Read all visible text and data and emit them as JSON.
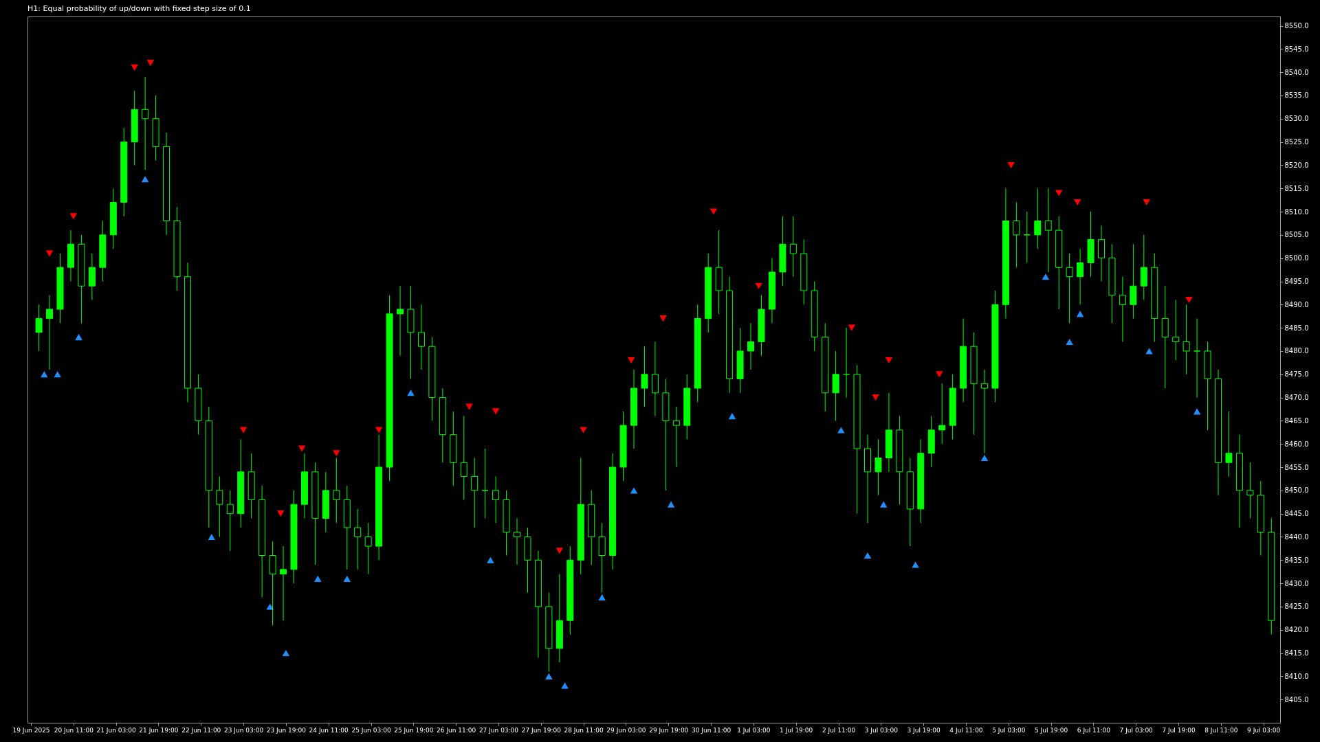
{
  "chart_data": {
    "type": "candlestick",
    "title": "H1:  Equal probability of up/down with fixed step size of 0.1",
    "color": "#00ff00",
    "x": [
      "2025-06-19T22:00",
      "2025-06-20T02:00",
      "2025-06-20T06:00",
      "2025-06-20T10:00",
      "2025-06-20T14:00",
      "2025-06-20T18:00",
      "2025-06-20T22:00",
      "2025-06-21T02:00",
      "2025-06-21T06:00",
      "2025-06-21T10:00",
      "2025-06-21T14:00",
      "2025-06-21T18:00",
      "2025-06-21T22:00",
      "2025-06-22T02:00",
      "2025-06-22T06:00",
      "2025-06-22T10:00",
      "2025-06-22T14:00",
      "2025-06-22T18:00",
      "2025-06-22T22:00",
      "2025-06-23T02:00",
      "2025-06-23T06:00",
      "2025-06-23T10:00",
      "2025-06-23T14:00",
      "2025-06-23T18:00",
      "2025-06-23T22:00",
      "2025-06-24T02:00",
      "2025-06-24T06:00",
      "2025-06-24T10:00",
      "2025-06-24T14:00",
      "2025-06-24T18:00",
      "2025-06-24T22:00",
      "2025-06-25T02:00",
      "2025-06-25T06:00",
      "2025-06-25T10:00",
      "2025-06-25T14:00",
      "2025-06-25T18:00",
      "2025-06-25T22:00",
      "2025-06-26T02:00",
      "2025-06-26T06:00",
      "2025-06-26T10:00",
      "2025-06-26T14:00",
      "2025-06-26T18:00",
      "2025-06-26T22:00",
      "2025-06-27T02:00",
      "2025-06-27T06:00",
      "2025-06-27T10:00",
      "2025-06-27T14:00",
      "2025-06-27T18:00",
      "2025-06-27T22:00",
      "2025-06-28T02:00",
      "2025-06-28T06:00",
      "2025-06-28T10:00",
      "2025-06-28T14:00",
      "2025-06-28T18:00",
      "2025-06-28T22:00",
      "2025-06-29T02:00",
      "2025-06-29T06:00",
      "2025-06-29T10:00",
      "2025-06-29T14:00",
      "2025-06-29T18:00",
      "2025-06-29T22:00",
      "2025-06-30T02:00",
      "2025-06-30T06:00",
      "2025-06-30T10:00",
      "2025-06-30T14:00",
      "2025-06-30T18:00",
      "2025-06-30T22:00",
      "2025-07-01T02:00",
      "2025-07-01T06:00",
      "2025-07-01T10:00",
      "2025-07-01T14:00",
      "2025-07-01T18:00",
      "2025-07-01T22:00",
      "2025-07-02T02:00",
      "2025-07-02T06:00",
      "2025-07-02T10:00",
      "2025-07-02T14:00",
      "2025-07-02T18:00",
      "2025-07-02T22:00",
      "2025-07-03T02:00",
      "2025-07-03T06:00",
      "2025-07-03T10:00",
      "2025-07-03T14:00",
      "2025-07-03T18:00",
      "2025-07-03T22:00",
      "2025-07-04T02:00",
      "2025-07-04T06:00",
      "2025-07-04T10:00",
      "2025-07-04T14:00",
      "2025-07-04T18:00",
      "2025-07-04T22:00",
      "2025-07-05T02:00",
      "2025-07-05T06:00",
      "2025-07-05T10:00",
      "2025-07-05T14:00",
      "2025-07-05T18:00",
      "2025-07-05T22:00",
      "2025-07-06T02:00",
      "2025-07-06T06:00",
      "2025-07-06T10:00",
      "2025-07-06T14:00",
      "2025-07-06T18:00",
      "2025-07-06T22:00",
      "2025-07-07T02:00",
      "2025-07-07T06:00",
      "2025-07-07T10:00",
      "2025-07-07T14:00",
      "2025-07-07T18:00",
      "2025-07-07T22:00",
      "2025-07-08T02:00",
      "2025-07-08T06:00",
      "2025-07-08T10:00",
      "2025-07-08T14:00",
      "2025-07-08T18:00",
      "2025-07-08T22:00",
      "2025-07-09T02:00",
      "2025-07-09T06:00"
    ],
    "ohlc": [
      [
        8484,
        8490,
        8480,
        8487
      ],
      [
        8487,
        8492,
        8476,
        8489
      ],
      [
        8489,
        8501,
        8486,
        8498
      ],
      [
        8498,
        8506,
        8495,
        8503
      ],
      [
        8503,
        8505,
        8486,
        8494
      ],
      [
        8494,
        8501,
        8491,
        8498
      ],
      [
        8498,
        8508,
        8495,
        8505
      ],
      [
        8505,
        8515,
        8502,
        8512
      ],
      [
        8512,
        8528,
        8509,
        8525
      ],
      [
        8525,
        8536,
        8520,
        8532
      ],
      [
        8532,
        8539,
        8519,
        8530
      ],
      [
        8530,
        8535,
        8521,
        8524
      ],
      [
        8524,
        8527,
        8505,
        8508
      ],
      [
        8508,
        8511,
        8493,
        8496
      ],
      [
        8496,
        8499,
        8469,
        8472
      ],
      [
        8472,
        8475,
        8462,
        8465
      ],
      [
        8465,
        8468,
        8442,
        8450
      ],
      [
        8450,
        8453,
        8440,
        8447
      ],
      [
        8447,
        8450,
        8437,
        8445
      ],
      [
        8445,
        8461,
        8442,
        8454
      ],
      [
        8454,
        8458,
        8444,
        8448
      ],
      [
        8448,
        8451,
        8427,
        8436
      ],
      [
        8436,
        8439,
        8421,
        8432
      ],
      [
        8432,
        8438,
        8422,
        8433
      ],
      [
        8433,
        8450,
        8430,
        8447
      ],
      [
        8447,
        8458,
        8444,
        8454
      ],
      [
        8454,
        8456,
        8434,
        8444
      ],
      [
        8444,
        8454,
        8441,
        8450
      ],
      [
        8450,
        8457,
        8443,
        8448
      ],
      [
        8448,
        8451,
        8433,
        8442
      ],
      [
        8442,
        8446,
        8433,
        8440
      ],
      [
        8440,
        8443,
        8432,
        8438
      ],
      [
        8438,
        8462,
        8435,
        8455
      ],
      [
        8455,
        8492,
        8452,
        8488
      ],
      [
        8488,
        8494,
        8479,
        8489
      ],
      [
        8489,
        8494,
        8474,
        8484
      ],
      [
        8484,
        8490,
        8476,
        8481
      ],
      [
        8481,
        8483,
        8465,
        8470
      ],
      [
        8470,
        8472,
        8456,
        8462
      ],
      [
        8462,
        8467,
        8451,
        8456
      ],
      [
        8456,
        8466,
        8448,
        8453
      ],
      [
        8453,
        8457,
        8442,
        8450
      ],
      [
        8450,
        8459,
        8444,
        8450
      ],
      [
        8450,
        8453,
        8443,
        8448
      ],
      [
        8448,
        8450,
        8436,
        8441
      ],
      [
        8441,
        8444,
        8434,
        8440
      ],
      [
        8440,
        8442,
        8428,
        8435
      ],
      [
        8435,
        8437,
        8414,
        8425
      ],
      [
        8425,
        8428,
        8411,
        8416
      ],
      [
        8416,
        8432,
        8413,
        8422
      ],
      [
        8422,
        8438,
        8419,
        8435
      ],
      [
        8435,
        8457,
        8432,
        8447
      ],
      [
        8447,
        8450,
        8434,
        8440
      ],
      [
        8440,
        8443,
        8428,
        8436
      ],
      [
        8436,
        8458,
        8433,
        8455
      ],
      [
        8455,
        8467,
        8452,
        8464
      ],
      [
        8464,
        8476,
        8459,
        8472
      ],
      [
        8472,
        8481,
        8468,
        8475
      ],
      [
        8475,
        8482,
        8466,
        8471
      ],
      [
        8471,
        8474,
        8450,
        8465
      ],
      [
        8465,
        8468,
        8455,
        8464
      ],
      [
        8464,
        8475,
        8461,
        8472
      ],
      [
        8472,
        8490,
        8469,
        8487
      ],
      [
        8487,
        8501,
        8484,
        8498
      ],
      [
        8498,
        8506,
        8488,
        8493
      ],
      [
        8493,
        8496,
        8471,
        8474
      ],
      [
        8474,
        8485,
        8471,
        8480
      ],
      [
        8480,
        8486,
        8476,
        8482
      ],
      [
        8482,
        8492,
        8479,
        8489
      ],
      [
        8489,
        8500,
        8486,
        8497
      ],
      [
        8497,
        8509,
        8494,
        8503
      ],
      [
        8503,
        8509,
        8496,
        8501
      ],
      [
        8501,
        8504,
        8490,
        8493
      ],
      [
        8493,
        8495,
        8480,
        8483
      ],
      [
        8483,
        8486,
        8467,
        8471
      ],
      [
        8471,
        8480,
        8465,
        8475
      ],
      [
        8475,
        8485,
        8470,
        8475
      ],
      [
        8475,
        8477,
        8445,
        8459
      ],
      [
        8459,
        8462,
        8443,
        8454
      ],
      [
        8454,
        8461,
        8449,
        8457
      ],
      [
        8457,
        8471,
        8454,
        8463
      ],
      [
        8463,
        8466,
        8447,
        8454
      ],
      [
        8454,
        8457,
        8438,
        8446
      ],
      [
        8446,
        8461,
        8443,
        8458
      ],
      [
        8458,
        8466,
        8455,
        8463
      ],
      [
        8463,
        8473,
        8460,
        8464
      ],
      [
        8464,
        8475,
        8461,
        8472
      ],
      [
        8472,
        8487,
        8469,
        8481
      ],
      [
        8481,
        8484,
        8462,
        8473
      ],
      [
        8473,
        8476,
        8458,
        8472
      ],
      [
        8472,
        8493,
        8469,
        8490
      ],
      [
        8490,
        8515,
        8487,
        8508
      ],
      [
        8508,
        8512,
        8498,
        8505
      ],
      [
        8505,
        8510,
        8499,
        8505
      ],
      [
        8505,
        8515,
        8502,
        8508
      ],
      [
        8508,
        8515,
        8497,
        8506
      ],
      [
        8506,
        8509,
        8489,
        8498
      ],
      [
        8498,
        8501,
        8486,
        8496
      ],
      [
        8496,
        8502,
        8490,
        8499
      ],
      [
        8499,
        8510,
        8496,
        8504
      ],
      [
        8504,
        8507,
        8495,
        8500
      ],
      [
        8500,
        8503,
        8486,
        8492
      ],
      [
        8492,
        8496,
        8482,
        8490
      ],
      [
        8490,
        8503,
        8487,
        8494
      ],
      [
        8494,
        8505,
        8491,
        8498
      ],
      [
        8498,
        8501,
        8482,
        8487
      ],
      [
        8487,
        8494,
        8472,
        8483
      ],
      [
        8483,
        8491,
        8478,
        8482
      ],
      [
        8482,
        8490,
        8475,
        8480
      ],
      [
        8480,
        8487,
        8470,
        8480
      ],
      [
        8480,
        8482,
        8463,
        8474
      ],
      [
        8474,
        8476,
        8449,
        8456
      ],
      [
        8456,
        8467,
        8453,
        8458
      ],
      [
        8458,
        8462,
        8442,
        8450
      ],
      [
        8450,
        8456,
        8444,
        8449
      ],
      [
        8449,
        8452,
        8436,
        8441
      ],
      [
        8441,
        8444,
        8419,
        8422
      ]
    ],
    "series": [
      {
        "type": "scatter",
        "color": "#1e90ff",
        "marker": "triangle",
        "x": [
          "2025-06-20T00:00",
          "2025-06-20T05:00",
          "2025-06-20T13:00",
          "2025-06-21T14:00",
          "2025-06-22T15:00",
          "2025-06-23T13:00",
          "2025-06-23T19:00",
          "2025-06-24T07:00",
          "2025-06-24T18:00",
          "2025-06-25T18:00",
          "2025-06-27T00:00",
          "2025-06-27T22:00",
          "2025-06-28T04:00",
          "2025-06-28T18:00",
          "2025-06-29T06:00",
          "2025-06-29T20:00",
          "2025-06-30T19:00",
          "2025-07-02T12:00",
          "2025-07-02T22:00",
          "2025-07-03T04:00",
          "2025-07-03T16:00",
          "2025-07-04T18:00",
          "2025-07-05T17:00",
          "2025-07-06T02:00",
          "2025-07-06T06:00",
          "2025-07-07T08:00",
          "2025-07-08T02:00"
        ],
        "values": [
          8475,
          8475,
          8483,
          8517,
          8440,
          8425,
          8415,
          8431,
          8431,
          8471,
          8435,
          8410,
          8408,
          8427,
          8450,
          8447,
          8466,
          8463,
          8436,
          8447,
          8434,
          8457,
          8496,
          8482,
          8488,
          8480,
          8467
        ]
      },
      {
        "type": "scatter",
        "color": "#ff0000",
        "marker": "triangle",
        "x": [
          "2025-06-20T02:00",
          "2025-06-20T11:00",
          "2025-06-21T10:00",
          "2025-06-21T16:00",
          "2025-06-23T03:00",
          "2025-06-23T17:00",
          "2025-06-24T01:00",
          "2025-06-24T14:00",
          "2025-06-25T06:00",
          "2025-06-26T16:00",
          "2025-06-27T02:00",
          "2025-06-28T02:00",
          "2025-06-28T11:00",
          "2025-06-29T05:00",
          "2025-06-29T17:00",
          "2025-06-30T12:00",
          "2025-07-01T05:00",
          "2025-07-02T16:00",
          "2025-07-03T01:00",
          "2025-07-03T06:00",
          "2025-07-04T01:00",
          "2025-07-05T04:00",
          "2025-07-05T22:00",
          "2025-07-06T05:00",
          "2025-07-07T07:00",
          "2025-07-07T23:00"
        ],
        "values": [
          8501,
          8509,
          8541,
          8542,
          8463,
          8445,
          8459,
          8458,
          8463,
          8468,
          8467,
          8437,
          8463,
          8478,
          8487,
          8510,
          8494,
          8485,
          8470,
          8478,
          8475,
          8520,
          8514,
          8512,
          8512,
          8491
        ]
      }
    ],
    "xlim": [
      "2025-06-19T19:00",
      "2025-07-09T08:00"
    ],
    "xticks": [
      {
        "value": "2025-06-19T19:00",
        "label": "19 Jun 2025"
      },
      {
        "value": "2025-06-20T11:00",
        "label": "20 Jun 11:00"
      },
      {
        "value": "2025-06-21T03:00",
        "label": "21 Jun 03:00"
      },
      {
        "value": "2025-06-21T19:00",
        "label": "21 Jun 19:00"
      },
      {
        "value": "2025-06-22T11:00",
        "label": "22 Jun 11:00"
      },
      {
        "value": "2025-06-23T03:00",
        "label": "23 Jun 03:00"
      },
      {
        "value": "2025-06-23T19:00",
        "label": "23 Jun 19:00"
      },
      {
        "value": "2025-06-24T11:00",
        "label": "24 Jun 11:00"
      },
      {
        "value": "2025-06-25T03:00",
        "label": "25 Jun 03:00"
      },
      {
        "value": "2025-06-25T19:00",
        "label": "25 Jun 19:00"
      },
      {
        "value": "2025-06-26T11:00",
        "label": "26 Jun 11:00"
      },
      {
        "value": "2025-06-27T03:00",
        "label": "27 Jun 03:00"
      },
      {
        "value": "2025-06-27T19:00",
        "label": "27 Jun 19:00"
      },
      {
        "value": "2025-06-28T11:00",
        "label": "28 Jun 11:00"
      },
      {
        "value": "2025-06-29T03:00",
        "label": "29 Jun 03:00"
      },
      {
        "value": "2025-06-29T19:00",
        "label": "29 Jun 19:00"
      },
      {
        "value": "2025-06-30T11:00",
        "label": "30 Jun 11:00"
      },
      {
        "value": "2025-07-01T03:00",
        "label": "1 Jul 03:00"
      },
      {
        "value": "2025-07-01T19:00",
        "label": "1 Jul 19:00"
      },
      {
        "value": "2025-07-02T11:00",
        "label": "2 Jul 11:00"
      },
      {
        "value": "2025-07-03T03:00",
        "label": "3 Jul 03:00"
      },
      {
        "value": "2025-07-03T19:00",
        "label": "3 Jul 19:00"
      },
      {
        "value": "2025-07-04T11:00",
        "label": "4 Jul 11:00"
      },
      {
        "value": "2025-07-05T03:00",
        "label": "5 Jul 03:00"
      },
      {
        "value": "2025-07-05T19:00",
        "label": "5 Jul 19:00"
      },
      {
        "value": "2025-07-06T11:00",
        "label": "6 Jul 11:00"
      },
      {
        "value": "2025-07-07T03:00",
        "label": "7 Jul 03:00"
      },
      {
        "value": "2025-07-07T19:00",
        "label": "7 Jul 19:00"
      },
      {
        "value": "2025-07-08T11:00",
        "label": "8 Jul 11:00"
      },
      {
        "value": "2025-07-09T03:00",
        "label": "9 Jul 03:00"
      }
    ],
    "ylim": [
      8400,
      8552
    ],
    "yticks": [
      {
        "value": 8405,
        "label": "8405.0"
      },
      {
        "value": 8410,
        "label": "8410.0"
      },
      {
        "value": 8415,
        "label": "8415.0"
      },
      {
        "value": 8420,
        "label": "8420.0"
      },
      {
        "value": 8425,
        "label": "8425.0"
      },
      {
        "value": 8430,
        "label": "8430.0"
      },
      {
        "value": 8435,
        "label": "8435.0"
      },
      {
        "value": 8440,
        "label": "8440.0"
      },
      {
        "value": 8445,
        "label": "8445.0"
      },
      {
        "value": 8450,
        "label": "8450.0"
      },
      {
        "value": 8455,
        "label": "8455.0"
      },
      {
        "value": 8460,
        "label": "8460.0"
      },
      {
        "value": 8465,
        "label": "8465.0"
      },
      {
        "value": 8470,
        "label": "8470.0"
      },
      {
        "value": 8475,
        "label": "8475.0"
      },
      {
        "value": 8480,
        "label": "8480.0"
      },
      {
        "value": 8485,
        "label": "8485.0"
      },
      {
        "value": 8490,
        "label": "8490.0"
      },
      {
        "value": 8495,
        "label": "8495.0"
      },
      {
        "value": 8500,
        "label": "8500.0"
      },
      {
        "value": 8505,
        "label": "8505.0"
      },
      {
        "value": 8510,
        "label": "8510.0"
      },
      {
        "value": 8515,
        "label": "8515.0"
      },
      {
        "value": 8520,
        "label": "8520.0"
      },
      {
        "value": 8525,
        "label": "8525.0"
      },
      {
        "value": 8530,
        "label": "8530.0"
      },
      {
        "value": 8535,
        "label": "8535.0"
      },
      {
        "value": 8540,
        "label": "8540.0"
      },
      {
        "value": 8545,
        "label": "8545.0"
      },
      {
        "value": 8550,
        "label": "8550.0"
      }
    ]
  }
}
